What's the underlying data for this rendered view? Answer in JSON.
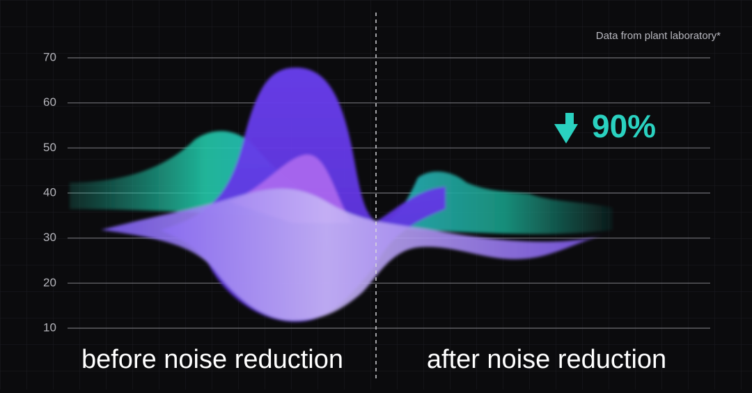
{
  "source_note": "Data from plant laboratory*",
  "reduction": "90%",
  "labels": {
    "before": "before noise reduction",
    "after": "after noise reduction"
  },
  "axis": {
    "ylim": [
      10,
      70
    ],
    "yticks": [
      10,
      20,
      30,
      40,
      50,
      60,
      70
    ]
  }
}
